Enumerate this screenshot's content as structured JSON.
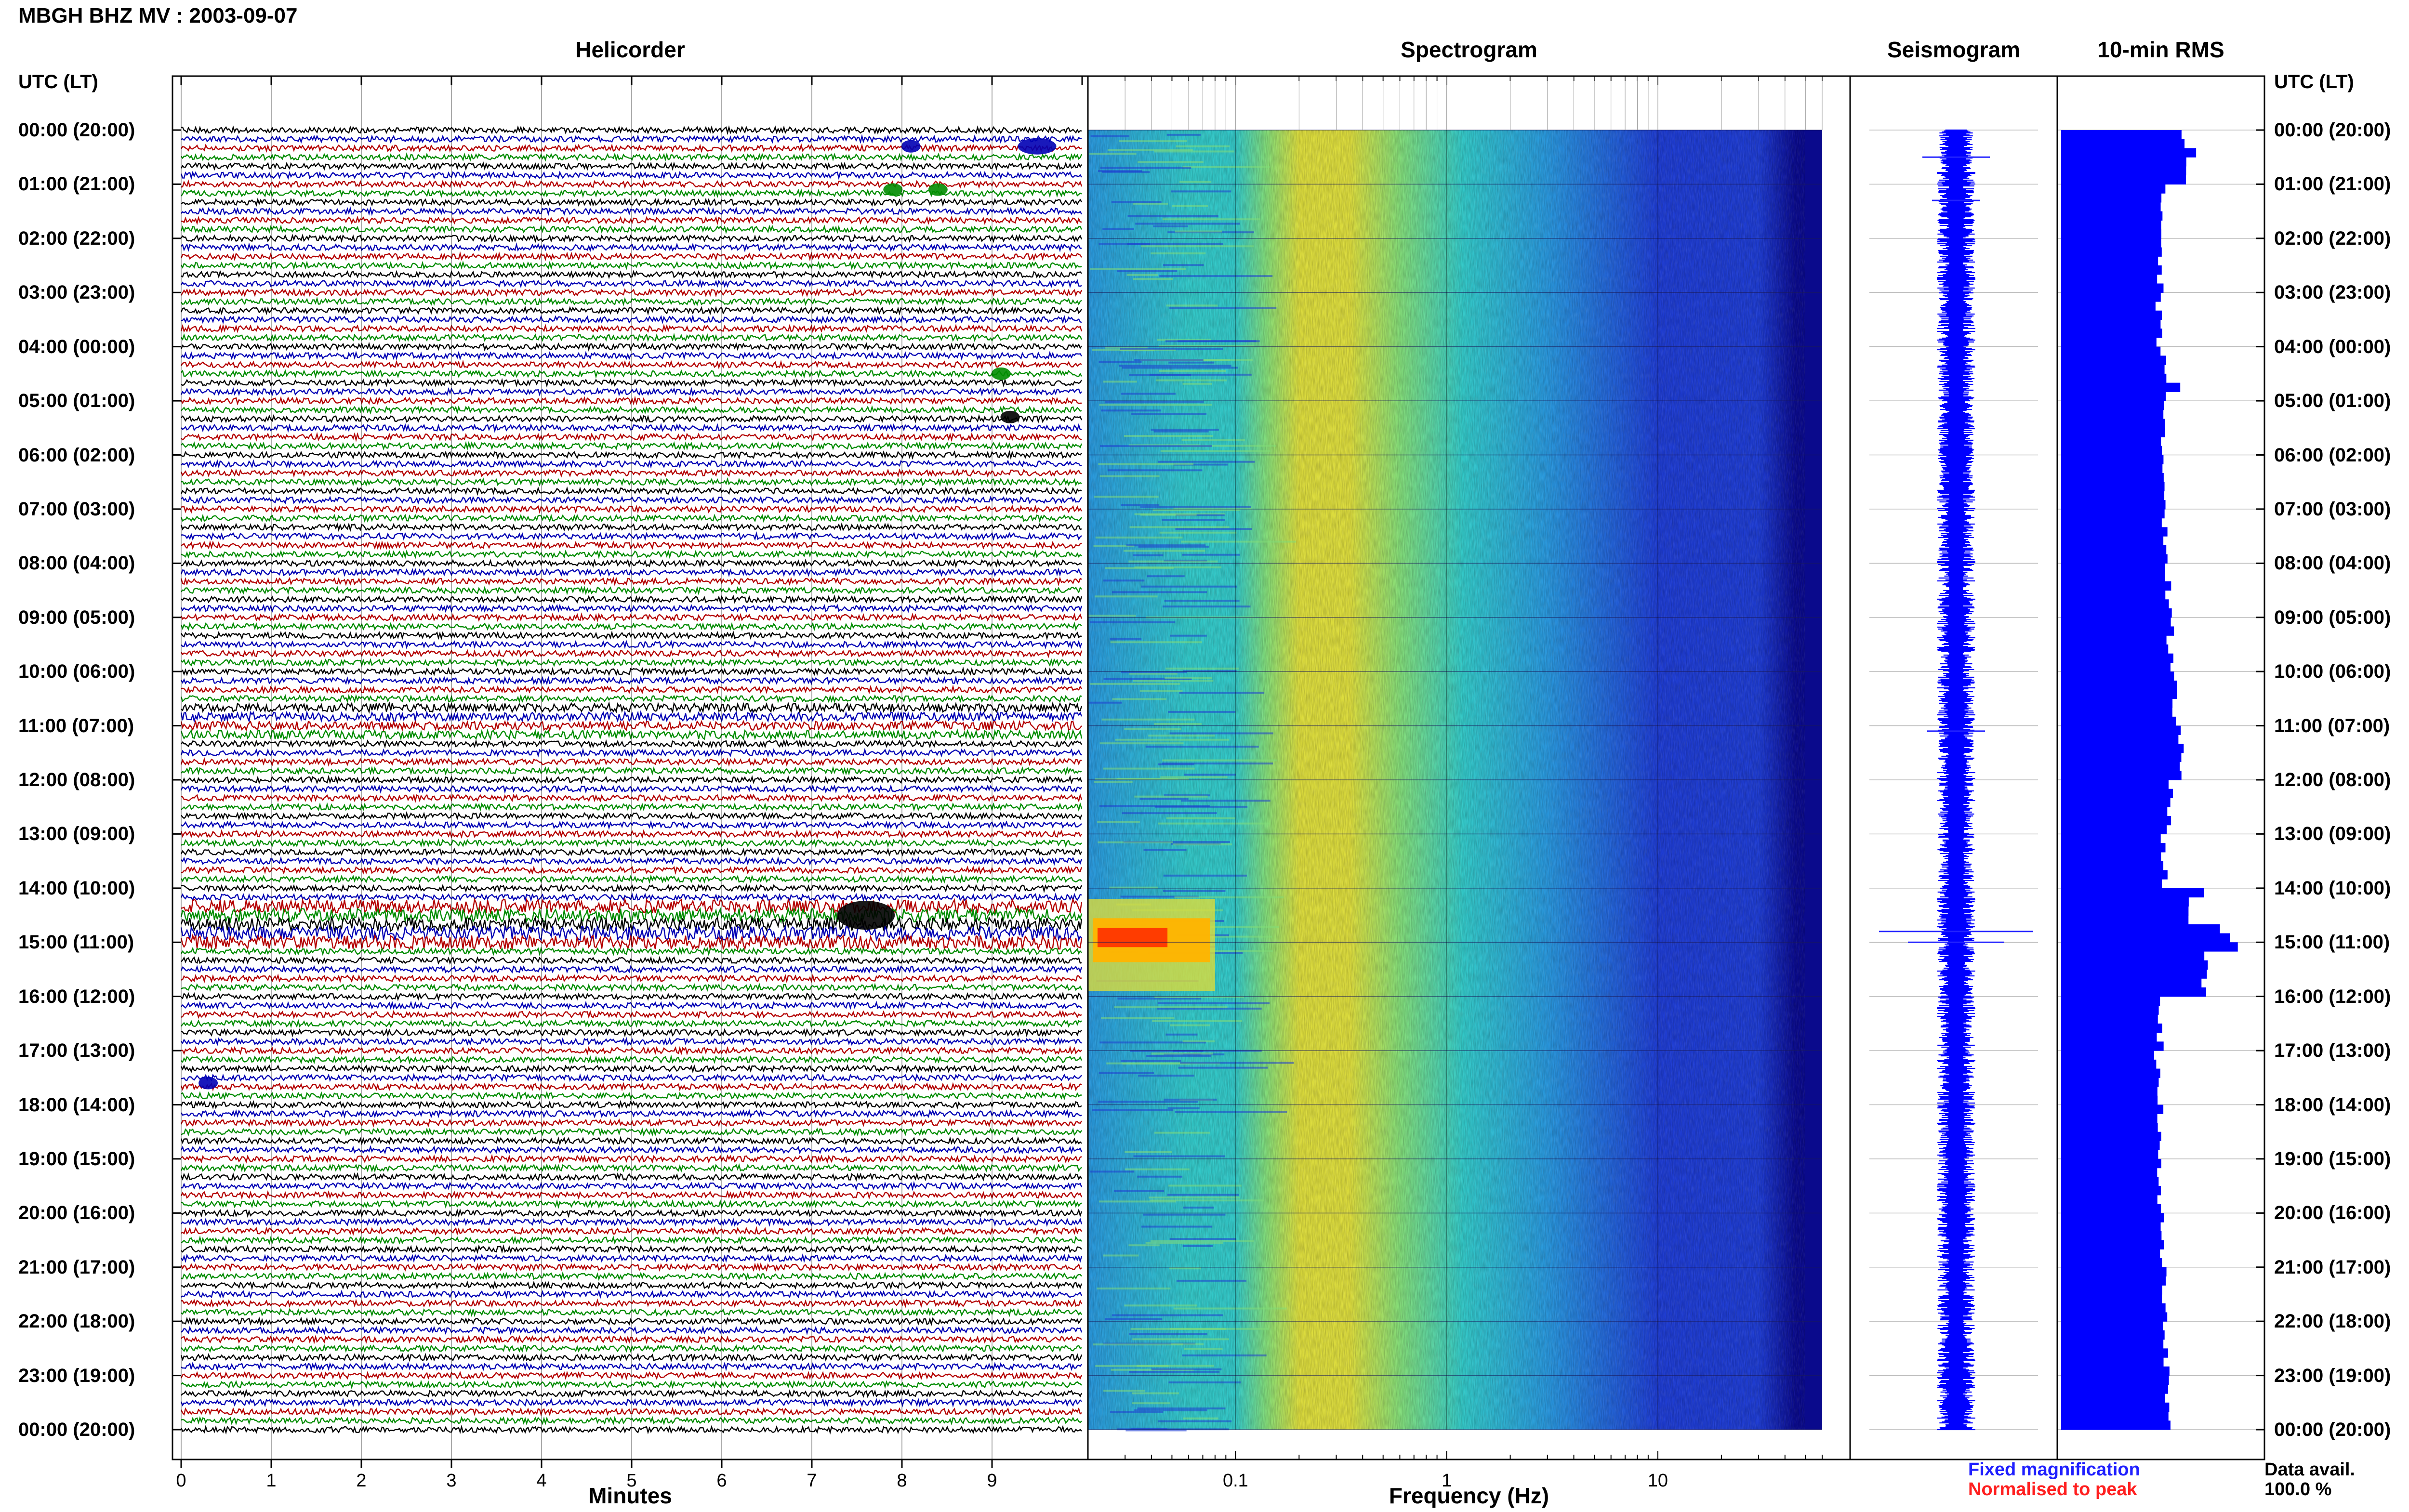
{
  "header": {
    "title": "MBGH BHZ MV : 2003-09-07"
  },
  "panels": {
    "helicorder_title": "Helicorder",
    "spectrogram_title": "Spectrogram",
    "seismogram_title": "Seismogram",
    "rms_title": "10-min RMS"
  },
  "time_axis": {
    "header_left": "UTC (LT)",
    "header_right": "UTC (LT)",
    "labels": [
      "00:00 (20:00)",
      "01:00 (21:00)",
      "02:00 (22:00)",
      "03:00 (23:00)",
      "04:00 (00:00)",
      "05:00 (01:00)",
      "06:00 (02:00)",
      "07:00 (03:00)",
      "08:00 (04:00)",
      "09:00 (05:00)",
      "10:00 (06:00)",
      "11:00 (07:00)",
      "12:00 (08:00)",
      "13:00 (09:00)",
      "14:00 (10:00)",
      "15:00 (11:00)",
      "16:00 (12:00)",
      "17:00 (13:00)",
      "18:00 (14:00)",
      "19:00 (15:00)",
      "20:00 (16:00)",
      "21:00 (17:00)",
      "22:00 (18:00)",
      "23:00 (19:00)",
      "00:00 (20:00)"
    ]
  },
  "legend": {
    "fixed": "Fixed magnification",
    "normalised": "Normalised to peak",
    "fixed_color": "#1f1fff",
    "normalised_color": "#ff1f1f",
    "avail_label": "Data avail.",
    "avail_value": "100.0 %"
  },
  "chart_data": [
    {
      "type": "line",
      "name": "helicorder",
      "title": "Helicorder",
      "xlabel": "Minutes",
      "x_ticks": [
        "0",
        "1",
        "2",
        "3",
        "4",
        "5",
        "6",
        "7",
        "8",
        "9"
      ],
      "xlim": [
        0,
        10
      ],
      "trace_colors": [
        "#000000",
        "#0000b4",
        "#b40000",
        "#008c00"
      ],
      "traces_per_hour": 6,
      "events": [
        {
          "hour": 0.3,
          "minute": 9.5,
          "color": "#0000b4",
          "size": "medium"
        },
        {
          "hour": 0.3,
          "minute": 8.1,
          "color": "#0000b4",
          "size": "small"
        },
        {
          "hour": 1.1,
          "minute": 7.9,
          "color": "#008c00",
          "size": "small"
        },
        {
          "hour": 1.1,
          "minute": 8.4,
          "color": "#008c00",
          "size": "small"
        },
        {
          "hour": 4.5,
          "minute": 9.1,
          "color": "#008c00",
          "size": "small"
        },
        {
          "hour": 5.3,
          "minute": 9.2,
          "color": "#000000",
          "size": "small"
        },
        {
          "hour": 14.5,
          "minute": 7.6,
          "color": "#000000",
          "size": "large"
        },
        {
          "hour": 17.6,
          "minute": 0.3,
          "color": "#0000b4",
          "size": "small"
        }
      ]
    },
    {
      "type": "heatmap",
      "name": "spectrogram",
      "title": "Spectrogram",
      "xlabel": "Frequency (Hz)",
      "x_scale": "log",
      "x_ticks": [
        "0.1",
        "1",
        "10"
      ],
      "xlim": [
        0.02,
        60
      ],
      "ylim_hours": [
        0,
        24
      ],
      "colormap": [
        "#0a0a8c",
        "#1e3cd2",
        "#2896dc",
        "#32c8c8",
        "#82dc78",
        "#dcdc3c",
        "#ffb400",
        "#ff3c00"
      ],
      "peak_band_hz": [
        0.2,
        0.6
      ],
      "event": {
        "hours": [
          14.2,
          15.9
        ],
        "freq_hz": [
          0.02,
          0.08
        ],
        "color": "#ff3c00"
      }
    },
    {
      "type": "line",
      "name": "seismogram",
      "title": "Seismogram",
      "spikes": [
        {
          "hour": 0.5,
          "amplitude": 0.35
        },
        {
          "hour": 1.3,
          "amplitude": 0.25
        },
        {
          "hour": 11.1,
          "amplitude": 0.3
        },
        {
          "hour": 14.8,
          "amplitude": 0.8
        },
        {
          "hour": 15.0,
          "amplitude": 0.5
        }
      ]
    },
    {
      "type": "bar",
      "name": "rms",
      "title": "10-min RMS",
      "orientation": "horizontal",
      "color": "#0000ff",
      "bin_minutes": 10,
      "hour_levels": [
        0.62,
        0.52,
        0.5,
        0.49,
        0.52,
        0.52,
        0.53,
        0.52,
        0.54,
        0.55,
        0.58,
        0.6,
        0.55,
        0.52,
        0.65,
        0.72,
        0.5,
        0.48,
        0.5,
        0.5,
        0.51,
        0.52,
        0.53,
        0.54
      ],
      "spikes": [
        {
          "hour": 0.4,
          "value": 0.68
        },
        {
          "hour": 4.6,
          "value": 0.6
        },
        {
          "hour": 14.0,
          "value": 0.72
        },
        {
          "hour": 14.6,
          "value": 0.8
        },
        {
          "hour": 14.8,
          "value": 0.85
        },
        {
          "hour": 15.0,
          "value": 0.89
        }
      ]
    }
  ]
}
